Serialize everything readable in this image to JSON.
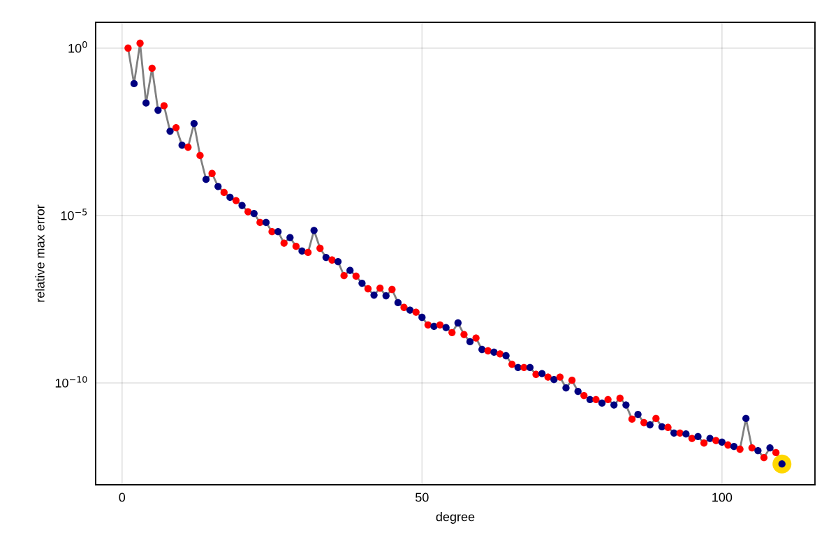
{
  "chart_data": {
    "type": "line",
    "xlabel": "degree",
    "ylabel": "relative max error",
    "log": "y",
    "grid": true,
    "xlim": [
      -4.4,
      115.5
    ],
    "xticks": [
      0,
      50,
      100
    ],
    "ylim": [
      9.1e-14,
      5.9
    ],
    "yticks": [
      {
        "value": 1,
        "label": "10$^{0}$"
      },
      {
        "value": 1e-05,
        "label": "10$^{−5}$"
      },
      {
        "value": 1e-10,
        "label": "10$^{−10}$"
      }
    ],
    "series": [
      {
        "color": "#808080",
        "marker": "circle",
        "x": [
          1,
          2,
          3,
          4,
          5,
          6,
          7,
          8,
          9,
          10,
          11,
          12,
          13,
          14,
          15,
          16,
          17,
          18,
          19,
          20,
          21,
          22,
          23,
          24,
          25,
          26,
          27,
          28,
          29,
          30,
          31,
          32,
          33,
          34,
          35,
          36,
          37,
          38,
          39,
          40,
          41,
          42,
          43,
          44,
          45,
          46,
          47,
          48,
          49,
          50,
          51,
          52,
          53,
          54,
          55,
          56,
          57,
          58,
          59,
          60,
          61,
          62,
          63,
          64,
          65,
          66,
          67,
          68,
          69,
          70,
          71,
          72,
          73,
          74,
          75,
          76,
          77,
          78,
          79,
          80,
          81,
          82,
          83,
          84,
          85,
          86,
          87,
          88,
          89,
          90,
          91,
          92,
          93,
          94,
          95,
          96,
          97,
          98,
          99,
          100,
          101,
          102,
          103,
          104,
          105,
          106,
          107,
          108,
          109,
          110
        ],
        "values": [
          1,
          0.087,
          1.4,
          0.023,
          0.25,
          0.014,
          0.019,
          0.0033,
          0.0042,
          0.00126,
          0.0011,
          0.0056,
          0.00062,
          0.00012,
          0.00018,
          7.4e-05,
          4.9e-05,
          3.5e-05,
          2.8e-05,
          2e-05,
          1.3e-05,
          1.15e-05,
          6.2e-06,
          6.2e-06,
          3.3e-06,
          3.3e-06,
          1.5e-06,
          2.2e-06,
          1.2e-06,
          8.7e-07,
          7.9e-07,
          3.6e-06,
          1.05e-06,
          5.6e-07,
          4.7e-07,
          4.2e-07,
          1.6e-07,
          2.3e-07,
          1.55e-07,
          9.5e-08,
          6.5e-08,
          4.2e-08,
          6.8e-08,
          4e-08,
          6.2e-08,
          2.5e-08,
          1.8e-08,
          1.5e-08,
          1.3e-08,
          9.1e-09,
          5.4e-09,
          4.9e-09,
          5.4e-09,
          4.5e-09,
          3.2e-09,
          6.2e-09,
          2.8e-09,
          1.7e-09,
          2.2e-09,
          1e-09,
          9.1e-10,
          8.3e-10,
          7.4e-10,
          6.5e-10,
          3.6e-10,
          2.9e-10,
          2.9e-10,
          2.9e-10,
          1.8e-10,
          1.9e-10,
          1.5e-10,
          1.26e-10,
          1.5e-10,
          7.1e-11,
          1.2e-10,
          5.6e-11,
          4.2e-11,
          3.2e-11,
          3.2e-11,
          2.5e-11,
          3.2e-11,
          2.2e-11,
          3.5e-11,
          2.2e-11,
          8.3e-12,
          1.15e-11,
          6.5e-12,
          5.6e-12,
          8.7e-12,
          4.9e-12,
          4.7e-12,
          3.2e-12,
          3.2e-12,
          3e-12,
          2.2e-12,
          2.5e-12,
          1.6e-12,
          2.2e-12,
          1.9e-12,
          1.7e-12,
          1.4e-12,
          1.26e-12,
          1.05e-12,
          8.7e-12,
          1.15e-12,
          9.5e-13,
          5.9e-13,
          1.15e-12,
          8.3e-13,
          3.8e-13
        ],
        "colors": [
          "#ff0000",
          "#000080",
          "#ff0000",
          "#000080",
          "#ff0000",
          "#000080",
          "#ff0000",
          "#000080",
          "#ff0000",
          "#000080",
          "#ff0000",
          "#000080",
          "#ff0000",
          "#000080",
          "#ff0000",
          "#000080",
          "#ff0000",
          "#000080",
          "#ff0000",
          "#000080",
          "#ff0000",
          "#000080",
          "#ff0000",
          "#000080",
          "#ff0000",
          "#000080",
          "#ff0000",
          "#000080",
          "#ff0000",
          "#000080",
          "#ff0000",
          "#000080",
          "#ff0000",
          "#000080",
          "#ff0000",
          "#000080",
          "#ff0000",
          "#000080",
          "#ff0000",
          "#000080",
          "#ff0000",
          "#000080",
          "#ff0000",
          "#000080",
          "#ff0000",
          "#000080",
          "#ff0000",
          "#000080",
          "#ff0000",
          "#000080",
          "#ff0000",
          "#000080",
          "#ff0000",
          "#000080",
          "#ff0000",
          "#000080",
          "#ff0000",
          "#000080",
          "#ff0000",
          "#000080",
          "#ff0000",
          "#000080",
          "#ff0000",
          "#000080",
          "#ff0000",
          "#000080",
          "#ff0000",
          "#000080",
          "#ff0000",
          "#000080",
          "#ff0000",
          "#000080",
          "#ff0000",
          "#000080",
          "#ff0000",
          "#000080",
          "#ff0000",
          "#000080",
          "#ff0000",
          "#000080",
          "#ff0000",
          "#000080",
          "#ff0000",
          "#000080",
          "#ff0000",
          "#000080",
          "#ff0000",
          "#000080",
          "#ff0000",
          "#000080",
          "#ff0000",
          "#000080",
          "#ff0000",
          "#000080",
          "#ff0000",
          "#000080",
          "#ff0000",
          "#000080",
          "#ff0000",
          "#000080",
          "#ff0000",
          "#000080",
          "#ff0000",
          "#000080",
          "#ff0000",
          "#000080",
          "#ff0000",
          "#000080",
          "#ff0000",
          "#000080"
        ]
      },
      {
        "type": "scatter",
        "color": "#ffd700",
        "marker": "circle",
        "x": [
          110
        ],
        "values": [
          3.8e-13
        ]
      }
    ]
  }
}
